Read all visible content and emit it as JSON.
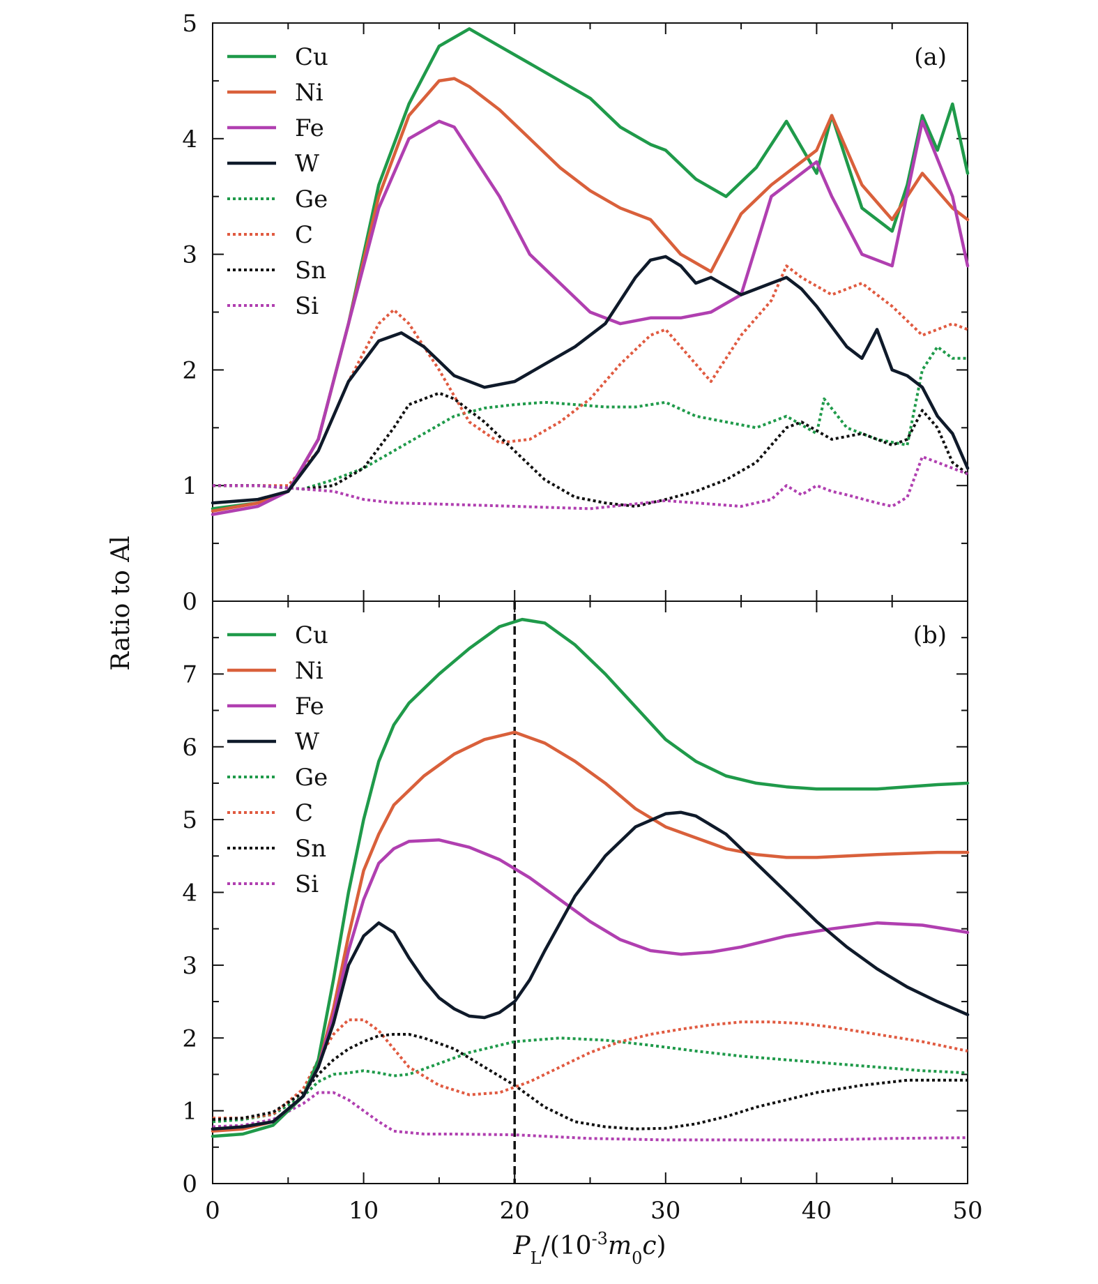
{
  "figure": {
    "ylabel": "Ratio to Al",
    "xlabel": "P_L/(10^-3 m0 c)"
  },
  "chart_data": [
    {
      "panel": "(a)",
      "type": "line",
      "xlim": [
        0,
        50
      ],
      "ylim": [
        0,
        5
      ],
      "xticks": [
        "0",
        "10",
        "20",
        "30",
        "40",
        "50"
      ],
      "yticks": [
        "0",
        "1",
        "2",
        "3",
        "4",
        "5"
      ],
      "grid": false,
      "legend_position": "top-left",
      "series": [
        {
          "name": "Cu",
          "style": "solid",
          "color": "#1f9a4a",
          "x": [
            0,
            3,
            5,
            7,
            9,
            11,
            13,
            15,
            17,
            19,
            21,
            23,
            25,
            27,
            29,
            30,
            32,
            34,
            36,
            38,
            40,
            41,
            43,
            45,
            46,
            47,
            48,
            49,
            50
          ],
          "y": [
            0.8,
            0.85,
            0.95,
            1.4,
            2.4,
            3.6,
            4.3,
            4.8,
            4.95,
            4.8,
            4.65,
            4.5,
            4.35,
            4.1,
            3.95,
            3.9,
            3.65,
            3.5,
            3.75,
            4.15,
            3.7,
            4.2,
            3.4,
            3.2,
            3.6,
            4.2,
            3.9,
            4.3,
            3.7
          ]
        },
        {
          "name": "Ni",
          "style": "solid",
          "color": "#d9603b",
          "x": [
            0,
            3,
            5,
            7,
            9,
            11,
            13,
            15,
            16,
            17,
            19,
            21,
            23,
            25,
            27,
            29,
            31,
            33,
            35,
            37,
            38,
            40,
            41,
            43,
            45,
            47,
            49,
            50
          ],
          "y": [
            0.78,
            0.85,
            0.95,
            1.4,
            2.4,
            3.5,
            4.2,
            4.5,
            4.52,
            4.45,
            4.25,
            4.0,
            3.75,
            3.55,
            3.4,
            3.3,
            3.0,
            2.85,
            3.35,
            3.6,
            3.7,
            3.9,
            4.2,
            3.6,
            3.3,
            3.7,
            3.4,
            3.3
          ]
        },
        {
          "name": "Fe",
          "style": "solid",
          "color": "#b03fb0",
          "x": [
            0,
            3,
            5,
            7,
            9,
            11,
            13,
            15,
            16,
            17,
            19,
            21,
            23,
            25,
            27,
            29,
            31,
            33,
            35,
            37,
            38,
            40,
            41,
            43,
            45,
            47,
            49,
            50
          ],
          "y": [
            0.75,
            0.82,
            0.95,
            1.4,
            2.4,
            3.4,
            4.0,
            4.15,
            4.1,
            3.9,
            3.5,
            3.0,
            2.75,
            2.5,
            2.4,
            2.45,
            2.45,
            2.5,
            2.65,
            3.5,
            3.6,
            3.8,
            3.5,
            3.0,
            2.9,
            4.15,
            3.5,
            2.9
          ]
        },
        {
          "name": "W",
          "style": "solid",
          "color": "#0f1a2a",
          "x": [
            0,
            3,
            5,
            7,
            9,
            11,
            12.5,
            14,
            16,
            18,
            20,
            22,
            24,
            26,
            28,
            29,
            30,
            31,
            32,
            33,
            35,
            37,
            38,
            39,
            40,
            42,
            43,
            44,
            45,
            46,
            47,
            48,
            49,
            50
          ],
          "y": [
            0.85,
            0.88,
            0.95,
            1.3,
            1.9,
            2.25,
            2.32,
            2.2,
            1.95,
            1.85,
            1.9,
            2.05,
            2.2,
            2.4,
            2.8,
            2.95,
            2.98,
            2.9,
            2.75,
            2.8,
            2.65,
            2.75,
            2.8,
            2.7,
            2.55,
            2.2,
            2.1,
            2.35,
            2.0,
            1.95,
            1.85,
            1.6,
            1.45,
            1.15
          ]
        },
        {
          "name": "Ge",
          "style": "dotted",
          "color": "#1f9a4a",
          "x": [
            0,
            3,
            6,
            8,
            10,
            12,
            14,
            16,
            18,
            20,
            22,
            24,
            26,
            28,
            30,
            32,
            34,
            36,
            38,
            40,
            40.5,
            42,
            44,
            46,
            47,
            48,
            49,
            50
          ],
          "y": [
            1.0,
            1.0,
            0.97,
            1.05,
            1.15,
            1.3,
            1.45,
            1.6,
            1.67,
            1.7,
            1.72,
            1.7,
            1.68,
            1.68,
            1.72,
            1.6,
            1.55,
            1.5,
            1.6,
            1.45,
            1.75,
            1.5,
            1.4,
            1.35,
            2.0,
            2.2,
            2.1,
            2.1
          ]
        },
        {
          "name": "C",
          "style": "dotted",
          "color": "#e05a40",
          "x": [
            0,
            3,
            5,
            7,
            9,
            11,
            12,
            13,
            15,
            17,
            19,
            21,
            23,
            25,
            27,
            29,
            30,
            31,
            33,
            35,
            37,
            38,
            39,
            41,
            43,
            45,
            47,
            49,
            50
          ],
          "y": [
            1.0,
            1.0,
            1.0,
            1.3,
            1.9,
            2.4,
            2.52,
            2.4,
            2.0,
            1.55,
            1.37,
            1.4,
            1.55,
            1.75,
            2.05,
            2.3,
            2.35,
            2.2,
            1.9,
            2.3,
            2.6,
            2.9,
            2.8,
            2.65,
            2.75,
            2.55,
            2.3,
            2.4,
            2.35
          ]
        },
        {
          "name": "Sn",
          "style": "dotted",
          "color": "#111111",
          "x": [
            0,
            3,
            6,
            8,
            10,
            12,
            13,
            15,
            16,
            18,
            20,
            22,
            24,
            26,
            28,
            30,
            32,
            34,
            36,
            38,
            39,
            41,
            43,
            45,
            46,
            47,
            48,
            49,
            50
          ],
          "y": [
            1.0,
            1.0,
            0.97,
            1.0,
            1.15,
            1.5,
            1.7,
            1.8,
            1.75,
            1.55,
            1.3,
            1.05,
            0.9,
            0.85,
            0.82,
            0.88,
            0.95,
            1.05,
            1.2,
            1.5,
            1.55,
            1.4,
            1.45,
            1.35,
            1.4,
            1.65,
            1.5,
            1.2,
            1.1
          ]
        },
        {
          "name": "Si",
          "style": "dotted",
          "color": "#b03fb0",
          "x": [
            0,
            3,
            6,
            8,
            10,
            12,
            15,
            20,
            25,
            30,
            35,
            37,
            38,
            39,
            40,
            41,
            42,
            44,
            45,
            46,
            47,
            48,
            49,
            50
          ],
          "y": [
            1.0,
            1.0,
            0.97,
            0.95,
            0.88,
            0.85,
            0.84,
            0.82,
            0.8,
            0.87,
            0.82,
            0.88,
            1.0,
            0.92,
            1.0,
            0.95,
            0.92,
            0.85,
            0.82,
            0.9,
            1.25,
            1.2,
            1.15,
            1.1
          ]
        }
      ]
    },
    {
      "panel": "(b)",
      "type": "line",
      "xlim": [
        0,
        50
      ],
      "ylim": [
        0,
        8
      ],
      "xticks": [
        "0",
        "10",
        "20",
        "30",
        "40",
        "50"
      ],
      "yticks": [
        "0",
        "1",
        "2",
        "3",
        "4",
        "5",
        "6",
        "7"
      ],
      "grid": false,
      "legend_position": "top-left",
      "vline_x": 20,
      "series": [
        {
          "name": "Cu",
          "style": "solid",
          "color": "#1f9a4a",
          "x": [
            0,
            2,
            4,
            6,
            7,
            8,
            9,
            10,
            11,
            12,
            13,
            15,
            17,
            19,
            20.5,
            22,
            24,
            26,
            28,
            30,
            32,
            34,
            36,
            38,
            40,
            44,
            48,
            50
          ],
          "y": [
            0.65,
            0.68,
            0.8,
            1.2,
            1.7,
            2.8,
            4.0,
            5.0,
            5.8,
            6.3,
            6.6,
            7.0,
            7.35,
            7.65,
            7.75,
            7.7,
            7.4,
            7.0,
            6.55,
            6.1,
            5.8,
            5.6,
            5.5,
            5.45,
            5.42,
            5.42,
            5.48,
            5.5
          ]
        },
        {
          "name": "Ni",
          "style": "solid",
          "color": "#d9603b",
          "x": [
            0,
            2,
            4,
            6,
            7,
            8,
            9,
            10,
            11,
            12,
            14,
            16,
            18,
            20,
            22,
            24,
            26,
            28,
            30,
            32,
            34,
            36,
            38,
            40,
            44,
            48,
            50
          ],
          "y": [
            0.72,
            0.75,
            0.85,
            1.2,
            1.6,
            2.4,
            3.4,
            4.3,
            4.8,
            5.2,
            5.6,
            5.9,
            6.1,
            6.2,
            6.05,
            5.8,
            5.5,
            5.15,
            4.9,
            4.75,
            4.6,
            4.52,
            4.48,
            4.48,
            4.52,
            4.55,
            4.55
          ]
        },
        {
          "name": "Fe",
          "style": "solid",
          "color": "#b03fb0",
          "x": [
            0,
            2,
            4,
            6,
            7,
            8,
            9,
            10,
            11,
            12,
            13,
            15,
            17,
            19,
            21,
            23,
            25,
            27,
            29,
            31,
            33,
            35,
            38,
            41,
            44,
            47,
            50
          ],
          "y": [
            0.75,
            0.78,
            0.85,
            1.2,
            1.6,
            2.3,
            3.2,
            3.9,
            4.4,
            4.6,
            4.7,
            4.72,
            4.62,
            4.45,
            4.2,
            3.9,
            3.6,
            3.35,
            3.2,
            3.15,
            3.18,
            3.25,
            3.4,
            3.5,
            3.58,
            3.55,
            3.45
          ]
        },
        {
          "name": "W",
          "style": "solid",
          "color": "#0f1a2a",
          "x": [
            0,
            2,
            4,
            6,
            7,
            8,
            9,
            10,
            11,
            12,
            13,
            14,
            15,
            16,
            17,
            18,
            19,
            20,
            21,
            22,
            24,
            26,
            28,
            30,
            31,
            32,
            34,
            36,
            38,
            40,
            42,
            44,
            46,
            48,
            50
          ],
          "y": [
            0.75,
            0.78,
            0.85,
            1.2,
            1.6,
            2.2,
            3.0,
            3.4,
            3.58,
            3.45,
            3.1,
            2.8,
            2.55,
            2.4,
            2.3,
            2.28,
            2.35,
            2.5,
            2.8,
            3.2,
            3.95,
            4.5,
            4.9,
            5.08,
            5.1,
            5.05,
            4.8,
            4.4,
            4.0,
            3.6,
            3.25,
            2.95,
            2.7,
            2.5,
            2.32
          ]
        },
        {
          "name": "Ge",
          "style": "dotted",
          "color": "#1f9a4a",
          "x": [
            0,
            2,
            4,
            6,
            7,
            8,
            9,
            10,
            11,
            12,
            13,
            15,
            17,
            20,
            23,
            26,
            29,
            32,
            35,
            38,
            41,
            44,
            47,
            50
          ],
          "y": [
            0.85,
            0.88,
            0.95,
            1.2,
            1.4,
            1.5,
            1.52,
            1.55,
            1.52,
            1.48,
            1.5,
            1.65,
            1.8,
            1.95,
            2.0,
            1.97,
            1.9,
            1.82,
            1.75,
            1.7,
            1.65,
            1.6,
            1.55,
            1.52
          ]
        },
        {
          "name": "C",
          "style": "dotted",
          "color": "#e05a40",
          "x": [
            0,
            2,
            4,
            6,
            7,
            8,
            9,
            10,
            11,
            12,
            13,
            15,
            17,
            19,
            21,
            23,
            25,
            27,
            29,
            31,
            33,
            35,
            37,
            39,
            41,
            44,
            47,
            50
          ],
          "y": [
            0.9,
            0.9,
            0.95,
            1.3,
            1.7,
            2.05,
            2.25,
            2.25,
            2.1,
            1.85,
            1.6,
            1.35,
            1.22,
            1.25,
            1.4,
            1.6,
            1.8,
            1.95,
            2.05,
            2.12,
            2.18,
            2.22,
            2.22,
            2.2,
            2.15,
            2.05,
            1.95,
            1.82
          ]
        },
        {
          "name": "Sn",
          "style": "dotted",
          "color": "#111111",
          "x": [
            0,
            2,
            4,
            6,
            7,
            8,
            9,
            10,
            11,
            12,
            13,
            14,
            16,
            18,
            20,
            22,
            24,
            26,
            28,
            30,
            32,
            34,
            36,
            38,
            40,
            43,
            46,
            50
          ],
          "y": [
            0.88,
            0.9,
            0.98,
            1.25,
            1.5,
            1.7,
            1.85,
            1.95,
            2.03,
            2.05,
            2.05,
            2.0,
            1.85,
            1.6,
            1.35,
            1.05,
            0.85,
            0.78,
            0.75,
            0.76,
            0.82,
            0.92,
            1.05,
            1.15,
            1.25,
            1.35,
            1.42,
            1.42
          ]
        },
        {
          "name": "Si",
          "style": "dotted",
          "color": "#b03fb0",
          "x": [
            0,
            2,
            4,
            6,
            7,
            8,
            9,
            10,
            11,
            12,
            14,
            16,
            20,
            25,
            30,
            35,
            40,
            45,
            50
          ],
          "y": [
            0.78,
            0.8,
            0.88,
            1.1,
            1.25,
            1.25,
            1.15,
            1.0,
            0.85,
            0.72,
            0.68,
            0.68,
            0.67,
            0.62,
            0.6,
            0.6,
            0.6,
            0.62,
            0.63
          ]
        }
      ]
    }
  ]
}
